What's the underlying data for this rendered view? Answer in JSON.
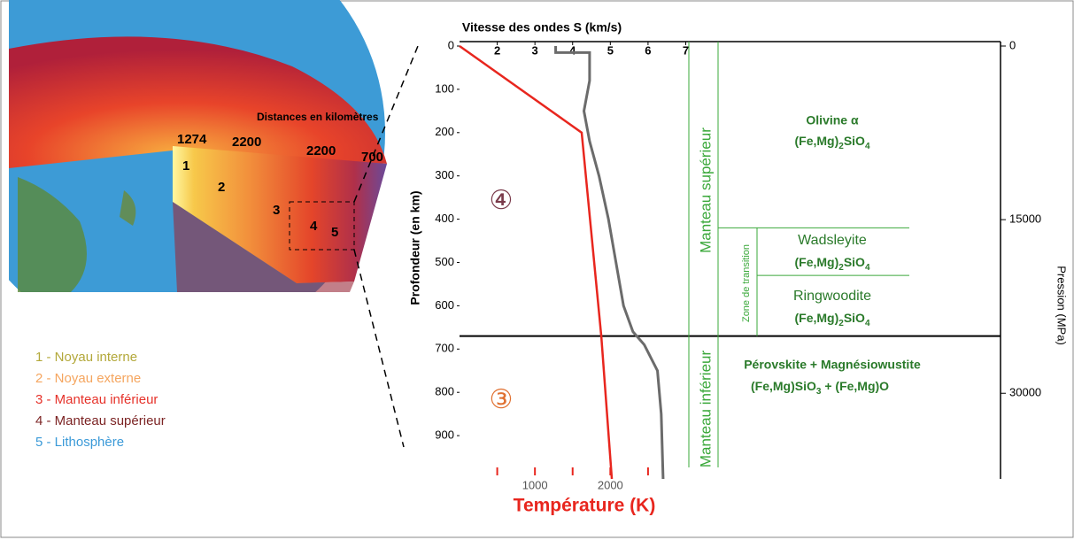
{
  "earth": {
    "distance_title": "Distances en kilomètres",
    "distances": [
      "1274",
      "2200",
      "2200",
      "700"
    ],
    "layer_numbers": [
      "1",
      "2",
      "3",
      "4",
      "5"
    ],
    "legend": [
      {
        "label": "1 - Noyau interne",
        "color": "#b3a83a"
      },
      {
        "label": "2 - Noyau externe",
        "color": "#f5a55e"
      },
      {
        "label": "3 - Manteau inférieur",
        "color": "#e6322a"
      },
      {
        "label": "4 - Manteau supérieur",
        "color": "#7c2424"
      },
      {
        "label": "5 - Lithosphère",
        "color": "#3b9ad8"
      }
    ]
  },
  "chart_data": {
    "type": "line",
    "title": "Vitesse des ondes S (km/s)",
    "ylabel": "Profondeur (en km)",
    "xlabel2": "Température (K)",
    "y2label": "Pression (MPa)",
    "ylim": [
      0,
      1000
    ],
    "yticks": [
      0,
      100,
      200,
      300,
      400,
      500,
      600,
      700,
      800,
      900
    ],
    "xlim": [
      1,
      7.2
    ],
    "xticks": [
      2,
      3,
      4,
      5,
      6,
      7
    ],
    "x2lim": [
      0,
      3100
    ],
    "x2ticks": [
      1000,
      2000
    ],
    "x2tick_marks": [
      500,
      1500,
      2500
    ],
    "y2lim": [
      0,
      37400
    ],
    "y2ticks": [
      0,
      15000,
      30000
    ],
    "series": [
      {
        "color": "#6b6b6b",
        "depth": [
          0,
          15,
          15,
          80,
          150,
          220,
          300,
          400,
          500,
          600,
          660,
          690,
          750,
          850,
          1000
        ],
        "values": [
          3.55,
          3.55,
          4.45,
          4.45,
          4.3,
          4.45,
          4.7,
          4.95,
          5.15,
          5.35,
          5.6,
          5.9,
          6.25,
          6.35,
          6.4
        ]
      },
      {
        "color": "#e8261e",
        "axis": "x2",
        "depth": [
          0,
          200,
          670,
          1000
        ],
        "values": [
          0,
          1620,
          1880,
          2020
        ]
      }
    ],
    "boundaries": [
      420,
      530,
      670
    ],
    "zones": {
      "upper_mantle": "Manteau supérieur",
      "lower_mantle": "Manteau inférieur",
      "transition": "Zone de transition",
      "upper_circle": "④",
      "lower_circle": "③"
    },
    "minerals": [
      {
        "name": "Olivine α",
        "formula": [
          "(Fe,Mg)",
          "2",
          "SiO",
          "4"
        ]
      },
      {
        "name": "Wadsleyite",
        "formula": [
          "(Fe,Mg)",
          "2",
          "SiO",
          "4"
        ]
      },
      {
        "name": "Ringwoodite",
        "formula": [
          "(Fe,Mg)",
          "2",
          "SiO",
          "4"
        ]
      },
      {
        "name": "Pérovskite + Magnésiowustite",
        "formula": [
          "(Fe,Mg)SiO",
          "3",
          " +   (Fe,Mg)O"
        ]
      }
    ]
  }
}
